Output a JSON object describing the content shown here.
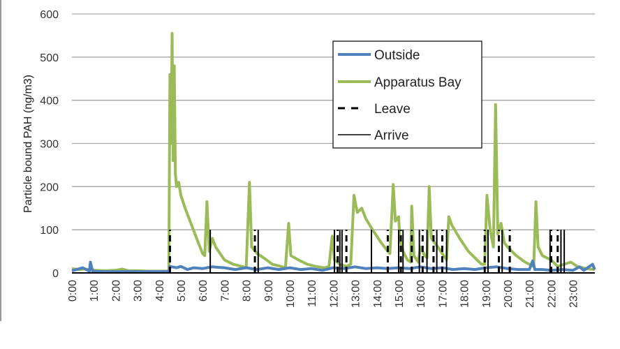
{
  "chart_data": {
    "type": "line",
    "title": "",
    "xlabel": "",
    "ylabel": "Particle bound PAH (ng/m3)",
    "ylim": [
      0,
      600
    ],
    "yticks": [
      0,
      100,
      200,
      300,
      400,
      500,
      600
    ],
    "xlim_hours": [
      0,
      24
    ],
    "xtick_labels": [
      "0:00",
      "1:00",
      "2:00",
      "3:00",
      "4:00",
      "5:00",
      "6:00",
      "7:00",
      "8:00",
      "9:00",
      "10:00",
      "11:00",
      "12:00",
      "13:00",
      "14:00",
      "15:00",
      "16:00",
      "17:00",
      "18:00",
      "19:00",
      "20:00",
      "21:00",
      "22:00",
      "23:00"
    ],
    "grid": "horizontal",
    "legend_position": "upper-right-inside",
    "legend": [
      {
        "name": "Outside",
        "style": "solid-thick",
        "color": "#4F81BD"
      },
      {
        "name": "Apparatus Bay",
        "style": "solid-thick",
        "color": "#9BBB59"
      },
      {
        "name": "Leave",
        "style": "dashed",
        "color": "#000000"
      },
      {
        "name": "Arrive",
        "style": "solid-thin",
        "color": "#000000"
      }
    ],
    "series": [
      {
        "name": "Apparatus Bay",
        "color": "#9BBB59",
        "points": [
          [
            0.0,
            10
          ],
          [
            0.3,
            8
          ],
          [
            0.6,
            9
          ],
          [
            1.0,
            6
          ],
          [
            1.5,
            5
          ],
          [
            2.0,
            6
          ],
          [
            2.3,
            9
          ],
          [
            2.6,
            5
          ],
          [
            3.0,
            5
          ],
          [
            3.5,
            4
          ],
          [
            4.0,
            4
          ],
          [
            4.45,
            4
          ],
          [
            4.5,
            460
          ],
          [
            4.55,
            300
          ],
          [
            4.6,
            555
          ],
          [
            4.65,
            260
          ],
          [
            4.7,
            480
          ],
          [
            4.75,
            230
          ],
          [
            4.8,
            200
          ],
          [
            4.9,
            210
          ],
          [
            5.0,
            180
          ],
          [
            5.2,
            150
          ],
          [
            5.5,
            110
          ],
          [
            5.8,
            70
          ],
          [
            6.0,
            45
          ],
          [
            6.1,
            40
          ],
          [
            6.2,
            165
          ],
          [
            6.3,
            50
          ],
          [
            6.45,
            80
          ],
          [
            6.6,
            60
          ],
          [
            7.0,
            30
          ],
          [
            7.4,
            20
          ],
          [
            7.8,
            15
          ],
          [
            8.0,
            12
          ],
          [
            8.15,
            210
          ],
          [
            8.25,
            60
          ],
          [
            8.5,
            45
          ],
          [
            8.8,
            35
          ],
          [
            9.2,
            20
          ],
          [
            9.6,
            15
          ],
          [
            9.8,
            12
          ],
          [
            9.95,
            115
          ],
          [
            10.05,
            40
          ],
          [
            10.4,
            30
          ],
          [
            10.8,
            20
          ],
          [
            11.2,
            15
          ],
          [
            11.6,
            12
          ],
          [
            11.8,
            15
          ],
          [
            11.95,
            85
          ],
          [
            12.05,
            30
          ],
          [
            12.3,
            20
          ],
          [
            12.6,
            15
          ],
          [
            12.8,
            20
          ],
          [
            12.95,
            180
          ],
          [
            13.1,
            140
          ],
          [
            13.3,
            150
          ],
          [
            13.5,
            125
          ],
          [
            13.8,
            100
          ],
          [
            14.2,
            70
          ],
          [
            14.5,
            50
          ],
          [
            14.6,
            45
          ],
          [
            14.75,
            205
          ],
          [
            14.85,
            120
          ],
          [
            15.0,
            130
          ],
          [
            15.05,
            80
          ],
          [
            15.2,
            50
          ],
          [
            15.4,
            30
          ],
          [
            15.55,
            25
          ],
          [
            15.6,
            155
          ],
          [
            15.7,
            40
          ],
          [
            15.9,
            25
          ],
          [
            16.0,
            60
          ],
          [
            16.2,
            40
          ],
          [
            16.3,
            35
          ],
          [
            16.4,
            200
          ],
          [
            16.5,
            80
          ],
          [
            16.8,
            60
          ],
          [
            17.0,
            45
          ],
          [
            17.2,
            30
          ],
          [
            17.3,
            130
          ],
          [
            17.45,
            110
          ],
          [
            17.8,
            80
          ],
          [
            18.2,
            50
          ],
          [
            18.5,
            35
          ],
          [
            18.8,
            20
          ],
          [
            18.95,
            20
          ],
          [
            19.05,
            180
          ],
          [
            19.2,
            100
          ],
          [
            19.35,
            60
          ],
          [
            19.45,
            390
          ],
          [
            19.55,
            90
          ],
          [
            19.7,
            115
          ],
          [
            19.85,
            70
          ],
          [
            20.0,
            60
          ],
          [
            20.4,
            40
          ],
          [
            20.8,
            25
          ],
          [
            21.0,
            20
          ],
          [
            21.2,
            15
          ],
          [
            21.3,
            165
          ],
          [
            21.4,
            60
          ],
          [
            21.6,
            40
          ],
          [
            22.0,
            30
          ],
          [
            22.3,
            15
          ],
          [
            22.6,
            20
          ],
          [
            22.9,
            25
          ],
          [
            23.2,
            15
          ],
          [
            23.6,
            10
          ],
          [
            24.0,
            8
          ]
        ]
      },
      {
        "name": "Outside",
        "color": "#4F81BD",
        "points": [
          [
            0.0,
            5
          ],
          [
            0.5,
            12
          ],
          [
            0.8,
            4
          ],
          [
            0.85,
            25
          ],
          [
            0.95,
            4
          ],
          [
            1.5,
            3
          ],
          [
            2.0,
            3
          ],
          [
            3.0,
            3
          ],
          [
            4.0,
            3
          ],
          [
            4.45,
            3
          ],
          [
            4.5,
            15
          ],
          [
            4.8,
            12
          ],
          [
            5.0,
            15
          ],
          [
            5.3,
            8
          ],
          [
            5.6,
            12
          ],
          [
            6.0,
            10
          ],
          [
            6.4,
            14
          ],
          [
            7.0,
            12
          ],
          [
            7.5,
            8
          ],
          [
            8.0,
            12
          ],
          [
            8.5,
            8
          ],
          [
            9.0,
            12
          ],
          [
            9.5,
            8
          ],
          [
            10.0,
            12
          ],
          [
            10.5,
            8
          ],
          [
            11.0,
            10
          ],
          [
            11.5,
            6
          ],
          [
            12.0,
            12
          ],
          [
            12.5,
            10
          ],
          [
            13.0,
            14
          ],
          [
            13.5,
            10
          ],
          [
            14.0,
            12
          ],
          [
            14.5,
            10
          ],
          [
            15.0,
            12
          ],
          [
            15.5,
            10
          ],
          [
            16.0,
            14
          ],
          [
            16.5,
            10
          ],
          [
            17.0,
            12
          ],
          [
            17.5,
            8
          ],
          [
            18.0,
            10
          ],
          [
            18.5,
            8
          ],
          [
            19.0,
            12
          ],
          [
            19.5,
            14
          ],
          [
            20.0,
            10
          ],
          [
            20.5,
            8
          ],
          [
            21.0,
            8
          ],
          [
            21.15,
            28
          ],
          [
            21.25,
            8
          ],
          [
            21.6,
            8
          ],
          [
            22.0,
            6
          ],
          [
            22.5,
            8
          ],
          [
            23.0,
            6
          ],
          [
            23.3,
            14
          ],
          [
            23.5,
            6
          ],
          [
            23.9,
            20
          ],
          [
            24.0,
            8
          ]
        ]
      }
    ],
    "events": {
      "height": 100,
      "leave": [
        4.5,
        8.4,
        12.2,
        12.6,
        14.5,
        15.1,
        15.6,
        16.1,
        16.6,
        17.0,
        18.95,
        19.6,
        20.1,
        22.0,
        22.3
      ],
      "arrive": [
        6.35,
        8.55,
        12.05,
        12.3,
        12.4,
        13.75,
        15.0,
        15.2,
        15.95,
        16.3,
        16.75,
        17.2,
        19.1,
        19.75,
        21.95,
        22.45,
        22.6
      ]
    }
  }
}
